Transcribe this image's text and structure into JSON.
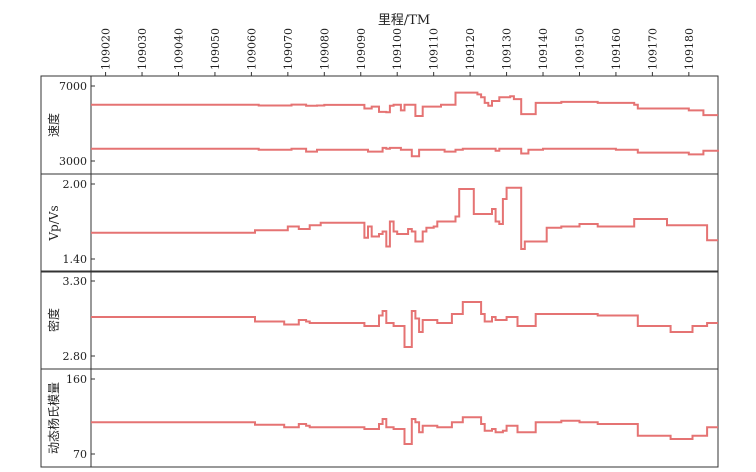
{
  "chart_data": [
    {
      "type": "line",
      "x_axis": {
        "label": "里程/TM",
        "ticks": [
          "109020",
          "109030",
          "109040",
          "109050",
          "109060",
          "109070",
          "109080",
          "109090",
          "109100",
          "109110",
          "109120",
          "109130",
          "109140",
          "109150",
          "109160",
          "109170",
          "109180"
        ],
        "range": [
          109016,
          109188
        ]
      },
      "ylabel": "速度",
      "ylim": [
        3000,
        7000
      ],
      "y_tick_labels": [
        "7000",
        "3000"
      ],
      "series": [
        {
          "values": [
            [
              109016,
              6000
            ],
            [
              109060,
              6000
            ],
            [
              109062,
              5960
            ],
            [
              109070,
              5960
            ],
            [
              109071,
              6010
            ],
            [
              109074,
              6010
            ],
            [
              109075,
              5950
            ],
            [
              109078,
              5960
            ],
            [
              109080,
              5990
            ],
            [
              109090,
              5990
            ],
            [
              109091,
              5800
            ],
            [
              109093,
              5900
            ],
            [
              109095,
              5620
            ],
            [
              109097,
              5600
            ],
            [
              109098,
              5950
            ],
            [
              109099,
              6000
            ],
            [
              109101,
              5700
            ],
            [
              109102,
              6000
            ],
            [
              109104,
              6000
            ],
            [
              109105,
              5400
            ],
            [
              109106,
              5400
            ],
            [
              109107,
              5900
            ],
            [
              109112,
              6000
            ],
            [
              109115,
              6000
            ],
            [
              109116,
              6650
            ],
            [
              109122,
              6550
            ],
            [
              109123,
              6400
            ],
            [
              109124,
              6100
            ],
            [
              109125,
              5950
            ],
            [
              109126,
              6200
            ],
            [
              109128,
              6400
            ],
            [
              109130,
              6400
            ],
            [
              109131,
              6450
            ],
            [
              109132,
              6300
            ],
            [
              109133,
              6300
            ],
            [
              109134,
              5500
            ],
            [
              109137,
              5500
            ],
            [
              109138,
              6100
            ],
            [
              109145,
              6150
            ],
            [
              109155,
              6100
            ],
            [
              109165,
              6000
            ],
            [
              109166,
              5800
            ],
            [
              109180,
              5700
            ],
            [
              109184,
              5450
            ],
            [
              109188,
              5450
            ]
          ]
        },
        {
          "values": [
            [
              109016,
              3650
            ],
            [
              109060,
              3650
            ],
            [
              109062,
              3600
            ],
            [
              109070,
              3600
            ],
            [
              109071,
              3650
            ],
            [
              109074,
              3650
            ],
            [
              109075,
              3500
            ],
            [
              109078,
              3600
            ],
            [
              109090,
              3600
            ],
            [
              109092,
              3500
            ],
            [
              109095,
              3500
            ],
            [
              109096,
              3700
            ],
            [
              109097,
              3650
            ],
            [
              109098,
              3700
            ],
            [
              109101,
              3600
            ],
            [
              109103,
              3600
            ],
            [
              109104,
              3250
            ],
            [
              109105,
              3250
            ],
            [
              109106,
              3600
            ],
            [
              109112,
              3600
            ],
            [
              109113,
              3500
            ],
            [
              109116,
              3600
            ],
            [
              109118,
              3650
            ],
            [
              109126,
              3650
            ],
            [
              109127,
              3550
            ],
            [
              109128,
              3650
            ],
            [
              109133,
              3650
            ],
            [
              109134,
              3400
            ],
            [
              109136,
              3600
            ],
            [
              109140,
              3650
            ],
            [
              109150,
              3650
            ],
            [
              109160,
              3600
            ],
            [
              109165,
              3600
            ],
            [
              109166,
              3450
            ],
            [
              109174,
              3450
            ],
            [
              109180,
              3350
            ],
            [
              109184,
              3550
            ],
            [
              109188,
              3600
            ]
          ]
        }
      ]
    },
    {
      "type": "line",
      "ylabel": "Vp/Vs",
      "ylim": [
        1.4,
        2.0
      ],
      "y_tick_labels": [
        "2.00",
        "1.40"
      ],
      "series": [
        {
          "values": [
            [
              109016,
              1.61
            ],
            [
              109060,
              1.61
            ],
            [
              109061,
              1.63
            ],
            [
              109069,
              1.63
            ],
            [
              109070,
              1.66
            ],
            [
              109072,
              1.66
            ],
            [
              109073,
              1.64
            ],
            [
              109075,
              1.64
            ],
            [
              109076,
              1.67
            ],
            [
              109078,
              1.67
            ],
            [
              109079,
              1.69
            ],
            [
              109090,
              1.69
            ],
            [
              109091,
              1.57
            ],
            [
              109092,
              1.66
            ],
            [
              109093,
              1.58
            ],
            [
              109095,
              1.6
            ],
            [
              109096,
              1.62
            ],
            [
              109097,
              1.5
            ],
            [
              109098,
              1.7
            ],
            [
              109099,
              1.62
            ],
            [
              109100,
              1.6
            ],
            [
              109102,
              1.6
            ],
            [
              109103,
              1.64
            ],
            [
              109104,
              1.62
            ],
            [
              109105,
              1.54
            ],
            [
              109106,
              1.54
            ],
            [
              109107,
              1.62
            ],
            [
              109108,
              1.65
            ],
            [
              109110,
              1.66
            ],
            [
              109111,
              1.7
            ],
            [
              109116,
              1.74
            ],
            [
              109117,
              1.96
            ],
            [
              109120,
              1.96
            ],
            [
              109121,
              1.76
            ],
            [
              109125,
              1.76
            ],
            [
              109126,
              1.8
            ],
            [
              109127,
              1.7
            ],
            [
              109128,
              1.68
            ],
            [
              109129,
              1.88
            ],
            [
              109130,
              1.97
            ],
            [
              109133,
              1.97
            ],
            [
              109134,
              1.48
            ],
            [
              109135,
              1.54
            ],
            [
              109140,
              1.54
            ],
            [
              109141,
              1.65
            ],
            [
              109145,
              1.66
            ],
            [
              109148,
              1.66
            ],
            [
              109150,
              1.68
            ],
            [
              109155,
              1.66
            ],
            [
              109164,
              1.66
            ],
            [
              109165,
              1.72
            ],
            [
              109173,
              1.72
            ],
            [
              109174,
              1.67
            ],
            [
              109184,
              1.67
            ],
            [
              109185,
              1.55
            ],
            [
              109188,
              1.55
            ]
          ]
        }
      ]
    },
    {
      "type": "line",
      "ylabel": "密度",
      "ylim": [
        2.8,
        3.3
      ],
      "y_tick_labels": [
        "3.30",
        "2.80"
      ],
      "series": [
        {
          "values": [
            [
              109016,
              3.06
            ],
            [
              109060,
              3.06
            ],
            [
              109061,
              3.03
            ],
            [
              109068,
              3.03
            ],
            [
              109069,
              3.01
            ],
            [
              109072,
              3.01
            ],
            [
              109073,
              3.04
            ],
            [
              109075,
              3.03
            ],
            [
              109076,
              3.02
            ],
            [
              109090,
              3.02
            ],
            [
              109091,
              3.0
            ],
            [
              109094,
              3.0
            ],
            [
              109095,
              3.07
            ],
            [
              109096,
              3.1
            ],
            [
              109097,
              3.02
            ],
            [
              109098,
              3.02
            ],
            [
              109099,
              3.0
            ],
            [
              109101,
              3.0
            ],
            [
              109102,
              2.86
            ],
            [
              109103,
              2.86
            ],
            [
              109104,
              3.1
            ],
            [
              109105,
              3.05
            ],
            [
              109106,
              2.96
            ],
            [
              109107,
              3.04
            ],
            [
              109110,
              3.04
            ],
            [
              109111,
              3.02
            ],
            [
              109114,
              3.02
            ],
            [
              109115,
              3.08
            ],
            [
              109117,
              3.08
            ],
            [
              109118,
              3.16
            ],
            [
              109122,
              3.16
            ],
            [
              109123,
              3.08
            ],
            [
              109124,
              3.03
            ],
            [
              109126,
              3.06
            ],
            [
              109127,
              3.04
            ],
            [
              109129,
              3.04
            ],
            [
              109130,
              3.06
            ],
            [
              109132,
              3.06
            ],
            [
              109133,
              3.0
            ],
            [
              109137,
              3.0
            ],
            [
              109138,
              3.08
            ],
            [
              109145,
              3.08
            ],
            [
              109150,
              3.08
            ],
            [
              109155,
              3.07
            ],
            [
              109165,
              3.07
            ],
            [
              109166,
              3.0
            ],
            [
              109174,
              3.0
            ],
            [
              109175,
              2.96
            ],
            [
              109180,
              2.96
            ],
            [
              109181,
              3.0
            ],
            [
              109184,
              3.0
            ],
            [
              109185,
              3.02
            ],
            [
              109188,
              3.02
            ]
          ]
        }
      ]
    },
    {
      "type": "line",
      "ylabel": "动态杨氏模量",
      "ylim": [
        70,
        160
      ],
      "y_tick_labels": [
        "160",
        "70"
      ],
      "series": [
        {
          "values": [
            [
              109016,
              108
            ],
            [
              109060,
              108
            ],
            [
              109061,
              105
            ],
            [
              109068,
              105
            ],
            [
              109069,
              102
            ],
            [
              109072,
              102
            ],
            [
              109073,
              106
            ],
            [
              109075,
              104
            ],
            [
              109076,
              102
            ],
            [
              109090,
              102
            ],
            [
              109091,
              100
            ],
            [
              109094,
              100
            ],
            [
              109095,
              106
            ],
            [
              109096,
              112
            ],
            [
              109097,
              102
            ],
            [
              109098,
              102
            ],
            [
              109099,
              100
            ],
            [
              109101,
              100
            ],
            [
              109102,
              82
            ],
            [
              109103,
              82
            ],
            [
              109104,
              112
            ],
            [
              109105,
              108
            ],
            [
              109106,
              96
            ],
            [
              109107,
              104
            ],
            [
              109110,
              104
            ],
            [
              109111,
              102
            ],
            [
              109114,
              102
            ],
            [
              109115,
              108
            ],
            [
              109117,
              108
            ],
            [
              109118,
              114
            ],
            [
              109122,
              114
            ],
            [
              109123,
              106
            ],
            [
              109124,
              98
            ],
            [
              109126,
              100
            ],
            [
              109127,
              96
            ],
            [
              109129,
              98
            ],
            [
              109130,
              104
            ],
            [
              109132,
              104
            ],
            [
              109133,
              96
            ],
            [
              109137,
              96
            ],
            [
              109138,
              108
            ],
            [
              109145,
              110
            ],
            [
              109150,
              108
            ],
            [
              109155,
              106
            ],
            [
              109165,
              106
            ],
            [
              109166,
              92
            ],
            [
              109174,
              92
            ],
            [
              109175,
              88
            ],
            [
              109180,
              88
            ],
            [
              109181,
              92
            ],
            [
              109184,
              92
            ],
            [
              109185,
              102
            ],
            [
              109188,
              102
            ]
          ]
        }
      ]
    }
  ]
}
